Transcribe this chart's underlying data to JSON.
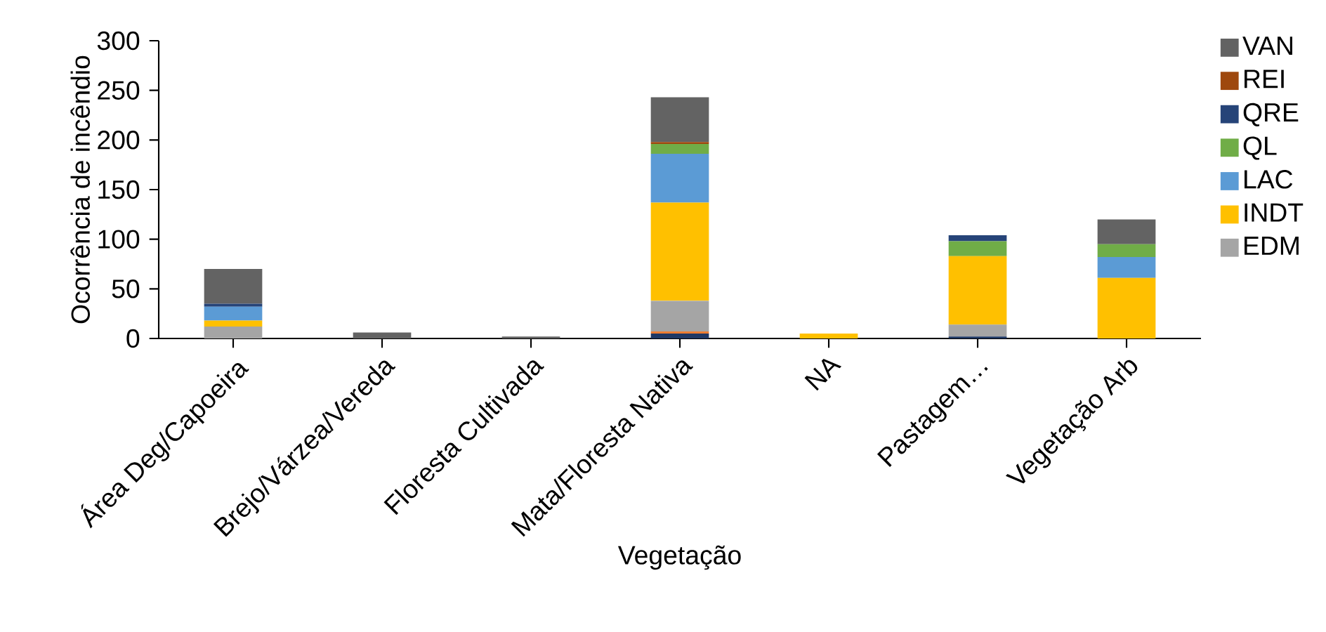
{
  "chart_data": {
    "type": "bar",
    "stacked": true,
    "xlabel": "Vegetação",
    "ylabel": "Ocorrência de incêndio",
    "categories": [
      "Área Deg/Capoeira",
      "Brejo/Várzea/Vereda",
      "Floresta Cultivada",
      "Mata/Floresta Nativa",
      "NA",
      "Pastagem…",
      "Vegetação Arb"
    ],
    "ylim": [
      0,
      300
    ],
    "yticks": [
      0,
      50,
      100,
      150,
      200,
      250,
      300
    ],
    "grid": false,
    "legend": "right",
    "series": [
      {
        "color": "#1f3864",
        "values": [
          null,
          null,
          null,
          5,
          null,
          2,
          null
        ]
      },
      {
        "color": "#ed7d31",
        "values": [
          null,
          null,
          null,
          2,
          null,
          null,
          null
        ]
      },
      {
        "name": "EDM",
        "color": "#a5a5a5",
        "values": [
          12,
          null,
          null,
          31,
          null,
          12,
          null
        ]
      },
      {
        "name": "INDT",
        "color": "#ffc000",
        "values": [
          6,
          null,
          null,
          99,
          5,
          69,
          61
        ]
      },
      {
        "name": "LAC",
        "color": "#5b9bd5",
        "values": [
          14,
          null,
          null,
          49,
          null,
          null,
          21
        ]
      },
      {
        "name": "QL",
        "color": "#70ad47",
        "values": [
          null,
          null,
          null,
          10,
          null,
          15,
          13
        ]
      },
      {
        "name": "QRE",
        "color": "#264478",
        "values": [
          3,
          null,
          null,
          null,
          null,
          6,
          null
        ]
      },
      {
        "name": "REI",
        "color": "#9e480e",
        "values": [
          null,
          null,
          null,
          2,
          null,
          null,
          null
        ]
      },
      {
        "name": "VAN",
        "color": "#636363",
        "values": [
          35,
          6,
          2,
          45,
          null,
          null,
          25
        ]
      }
    ]
  }
}
